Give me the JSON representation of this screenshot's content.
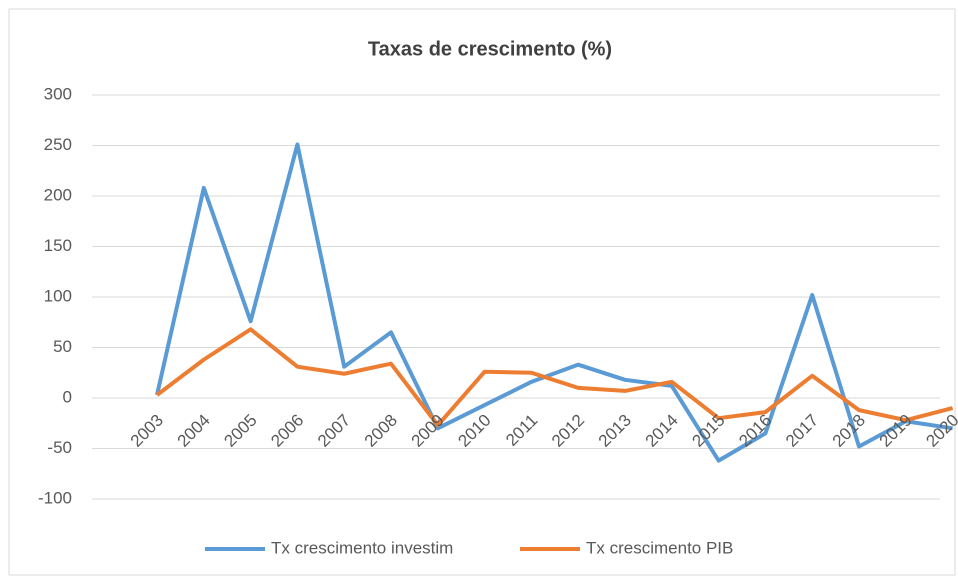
{
  "chart_data": {
    "type": "line",
    "title": "Taxas de crescimento (%)",
    "categories": [
      "2003",
      "2004",
      "2005",
      "2006",
      "2007",
      "2008",
      "2009",
      "2010",
      "2011",
      "2012",
      "2013",
      "2014",
      "2015",
      "2016",
      "2017",
      "2018",
      "2019",
      "2020"
    ],
    "series": [
      {
        "name": "Tx crescimento investim",
        "color": "#5b9bd5",
        "values": [
          3,
          208,
          76,
          251,
          31,
          65,
          -30,
          -7,
          16,
          33,
          18,
          12,
          -62,
          -35,
          102,
          -48,
          -23,
          -30
        ]
      },
      {
        "name": "Tx crescimento PIB",
        "color": "#ed7d31",
        "values": [
          3,
          38,
          68,
          31,
          24,
          34,
          -27,
          26,
          25,
          10,
          7,
          16,
          -20,
          -14,
          22,
          -12,
          -22,
          -10
        ]
      }
    ],
    "ylim": [
      -100,
      300
    ],
    "yticks": [
      -100,
      -50,
      0,
      50,
      100,
      150,
      200,
      250,
      300
    ],
    "grid": true,
    "legend": "bottom"
  }
}
